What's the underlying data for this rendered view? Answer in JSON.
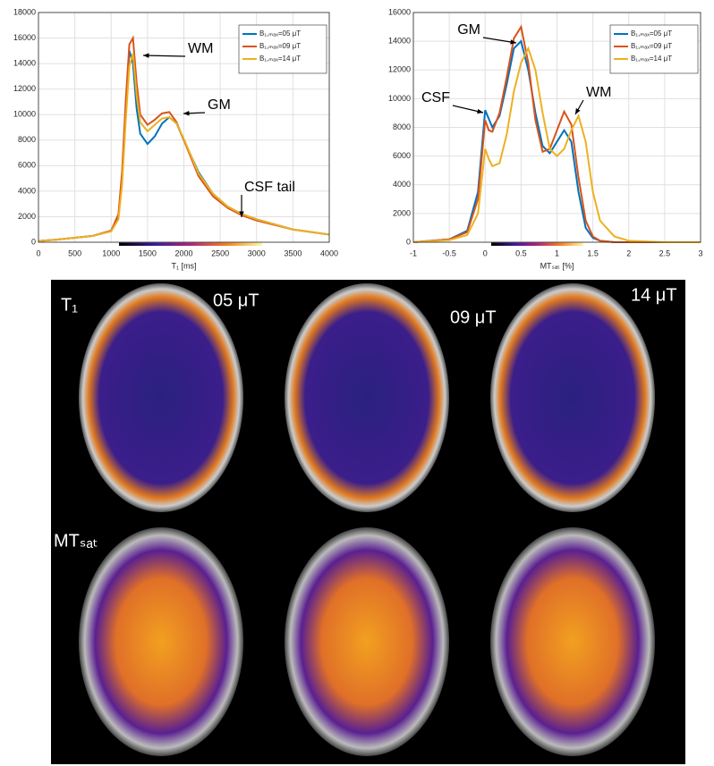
{
  "chart_data": [
    {
      "type": "line",
      "xlabel": "T₁ [ms]",
      "x": [
        0,
        250,
        500,
        750,
        1000,
        1100,
        1150,
        1200,
        1250,
        1300,
        1350,
        1400,
        1500,
        1600,
        1700,
        1800,
        1900,
        2000,
        2200,
        2400,
        2600,
        2800,
        3000,
        3500,
        4000
      ],
      "series": [
        {
          "name": "B₁,ₘₐₓ=05 μT",
          "color": "#0072BD",
          "values": [
            100,
            200,
            350,
            500,
            900,
            2000,
            5000,
            10500,
            15000,
            14000,
            10500,
            8500,
            7700,
            8300,
            9300,
            9800,
            9300,
            8000,
            5500,
            3800,
            2800,
            2200,
            1800,
            1000,
            600
          ]
        },
        {
          "name": "B₁,ₘₐₓ=09 μT",
          "color": "#D95319",
          "values": [
            100,
            200,
            350,
            500,
            900,
            2200,
            5500,
            11000,
            15500,
            16000,
            12500,
            10000,
            9200,
            9600,
            10100,
            10200,
            9400,
            8000,
            5200,
            3600,
            2700,
            2100,
            1700,
            1000,
            600
          ]
        },
        {
          "name": "B₁,ₘₐₓ=14 μT",
          "color": "#EDB120",
          "values": [
            100,
            200,
            350,
            500,
            850,
            1800,
            4500,
            9500,
            13800,
            14800,
            11500,
            9400,
            8700,
            9200,
            9700,
            9800,
            9300,
            8100,
            5400,
            3800,
            2800,
            2200,
            1800,
            1000,
            600
          ]
        }
      ],
      "xlim": [
        0,
        4000
      ],
      "xticks": [
        0,
        500,
        1000,
        1500,
        2000,
        2500,
        3000,
        3500,
        4000
      ],
      "ylim": [
        0,
        18000
      ],
      "yticks": [
        0,
        2000,
        4000,
        6000,
        8000,
        10000,
        12000,
        14000,
        16000,
        18000
      ],
      "grid": true,
      "legend": "upper right",
      "annotations": [
        "WM",
        "GM",
        "CSF tail"
      ]
    },
    {
      "type": "line",
      "xlabel": "MTₛₐₜ [%]",
      "x": [
        -1,
        -0.5,
        -0.25,
        -0.1,
        0,
        0.05,
        0.1,
        0.2,
        0.3,
        0.4,
        0.5,
        0.6,
        0.7,
        0.8,
        0.9,
        1,
        1.1,
        1.2,
        1.3,
        1.4,
        1.5,
        1.6,
        1.8,
        2,
        2.5,
        3
      ],
      "series": [
        {
          "name": "B₁,ₘₐₓ=05 μT",
          "color": "#0072BD",
          "values": [
            0,
            200,
            800,
            3500,
            9200,
            8600,
            8000,
            8800,
            11000,
            13500,
            14000,
            12000,
            9000,
            6700,
            6200,
            7000,
            7800,
            7000,
            3500,
            1000,
            300,
            100,
            0,
            0,
            0,
            0
          ]
        },
        {
          "name": "B₁,ₘₐₓ=09 μT",
          "color": "#D95319",
          "values": [
            0,
            200,
            700,
            3000,
            8500,
            7800,
            7700,
            9000,
            11500,
            14200,
            15000,
            12500,
            8500,
            6300,
            6500,
            7800,
            9100,
            8200,
            4500,
            1500,
            400,
            100,
            0,
            0,
            0,
            0
          ]
        },
        {
          "name": "B₁,ₘₐₓ=14 μT",
          "color": "#EDB120",
          "values": [
            0,
            150,
            500,
            2000,
            6500,
            5800,
            5300,
            5500,
            7500,
            10500,
            12500,
            13500,
            12000,
            9000,
            6500,
            6000,
            6500,
            7800,
            8800,
            7000,
            3500,
            1500,
            400,
            100,
            0,
            0
          ]
        }
      ],
      "xlim": [
        -1,
        3
      ],
      "xticks": [
        -1,
        -0.5,
        0,
        0.5,
        1,
        1.5,
        2,
        2.5,
        3
      ],
      "ylim": [
        0,
        16000
      ],
      "yticks": [
        0,
        2000,
        4000,
        6000,
        8000,
        10000,
        12000,
        14000,
        16000
      ],
      "grid": true,
      "legend": "upper right",
      "annotations": [
        "GM",
        "CSF",
        "WM"
      ]
    }
  ],
  "panels": {
    "row_labels": [
      "T₁",
      "MTₛₐₜ"
    ],
    "column_labels": [
      "05 μT",
      "09 μT",
      "14 μT"
    ]
  }
}
